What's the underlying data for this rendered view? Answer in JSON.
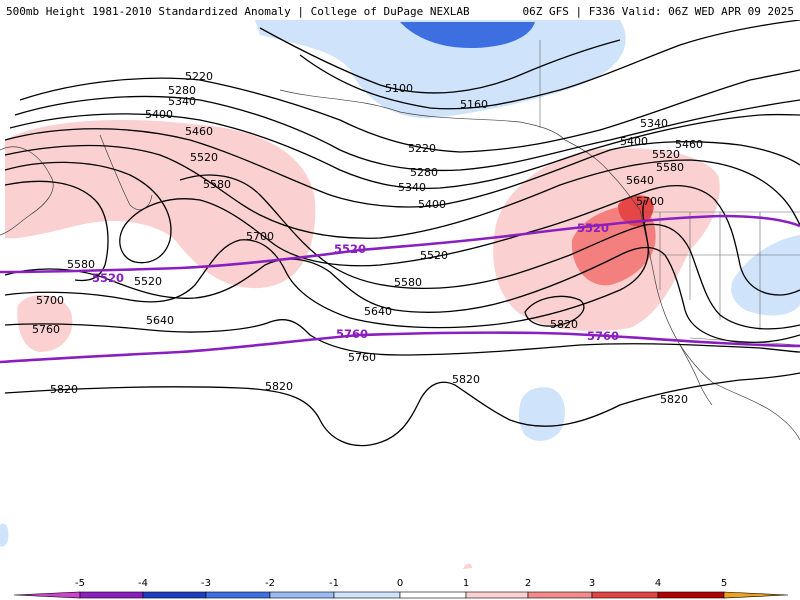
{
  "title": {
    "left": "500mb Height 1981-2010 Standardized Anomaly | College of DuPage NEXLAB",
    "right": "06Z GFS | F336 Valid: 06Z WED APR 09 2025"
  },
  "contour_labels": [
    "5100",
    "5160",
    "5220",
    "5280",
    "5340",
    "5400",
    "5460",
    "5520",
    "5580",
    "5640",
    "5700",
    "5760",
    "5820"
  ],
  "purple_labels": [
    "5520",
    "5760"
  ],
  "colorbar": {
    "ticks": [
      "-5",
      "-4",
      "-3",
      "-2",
      "-1",
      "0",
      "1",
      "2",
      "3",
      "4",
      "5"
    ],
    "colors": [
      "#cc44cc",
      "#8a1fc0",
      "#1f3fbf",
      "#3e6fe0",
      "#9bbcf3",
      "#cfe3fb",
      "#ffffff",
      "#fbd0d0",
      "#f28a8a",
      "#e04545",
      "#b00000",
      "#f0a020"
    ]
  },
  "colors": {
    "contour": "#000000",
    "special_contour": "#8a1fc0",
    "positive_light": "#fbd0d0",
    "positive_mid": "#f47f7f",
    "positive_strong": "#e64646",
    "negative_light": "#cfe3fb",
    "negative_mid": "#a7c8f5",
    "negative_strong": "#3e6fe0"
  }
}
